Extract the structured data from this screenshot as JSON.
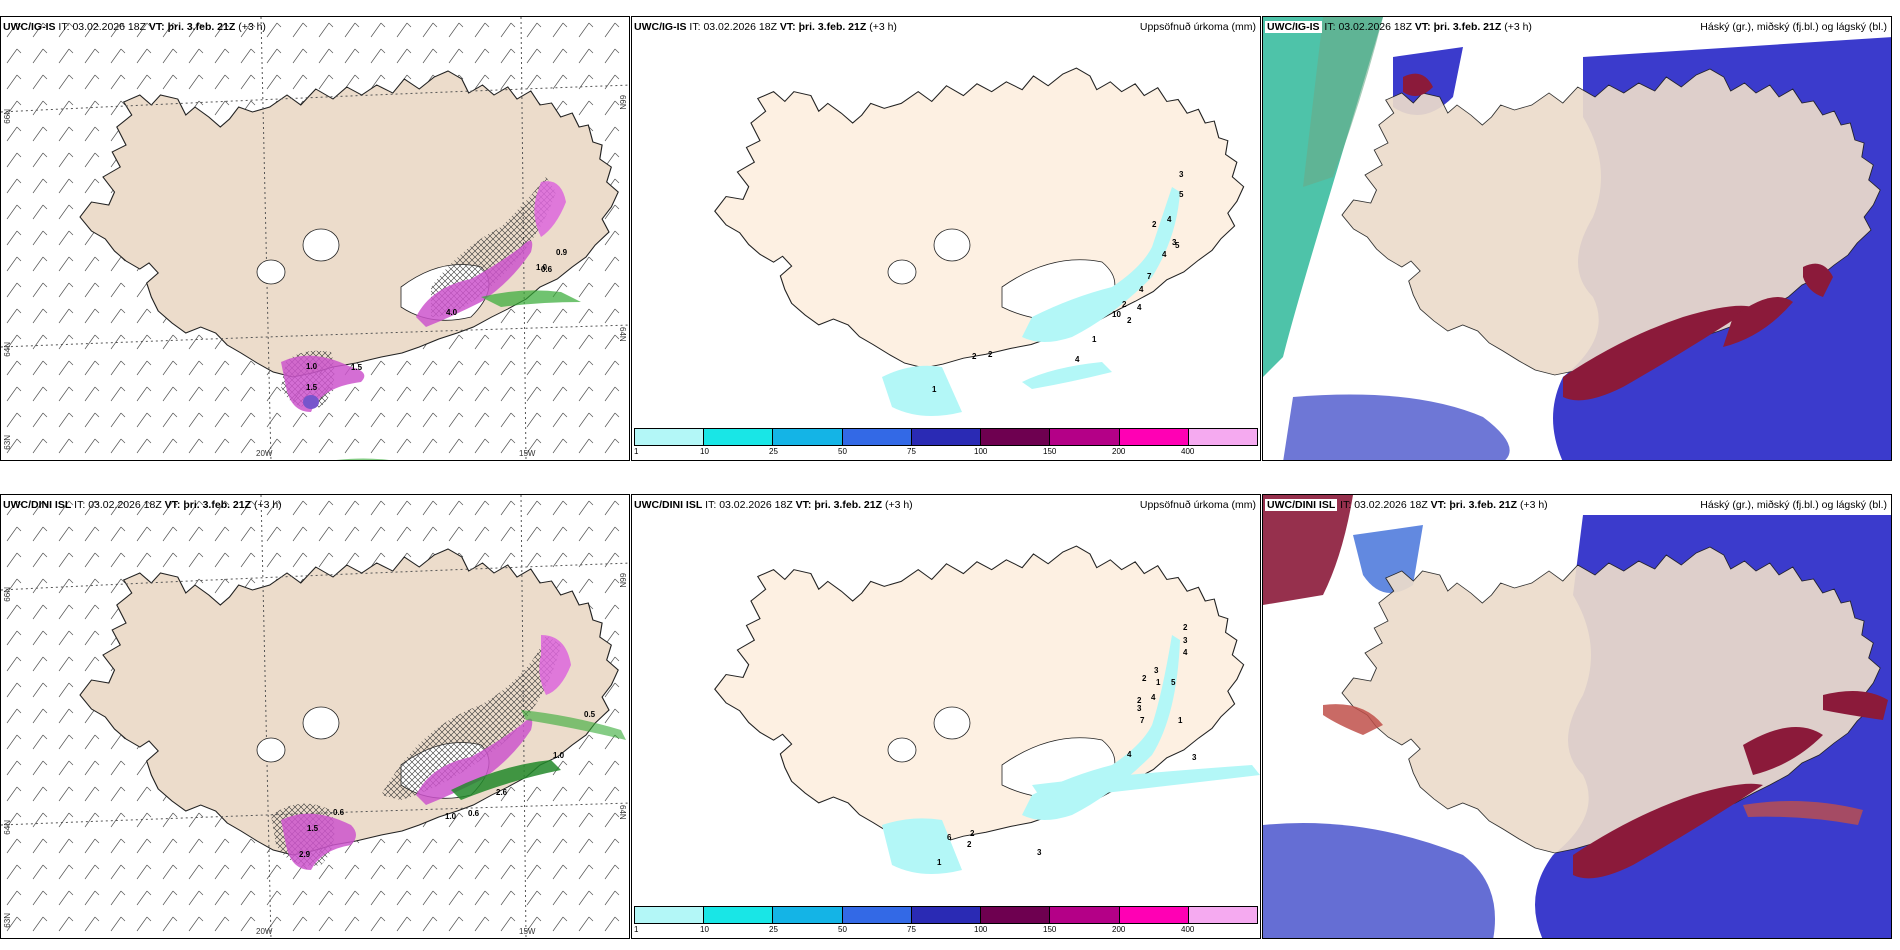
{
  "rows": [
    {
      "model": "UWC/IG-IS",
      "it_label": "IT:",
      "it_value": "03.02.2026 18Z",
      "vt_label": "VT:",
      "vt_value": "þri. 3.feb. 21Z",
      "lead": "(+3 h)"
    },
    {
      "model": "UWC/DINI ISL",
      "it_label": "IT:",
      "it_value": "03.02.2026 18Z",
      "vt_label": "VT:",
      "vt_value": "þri. 3.feb. 21Z",
      "lead": "(+3 h)"
    }
  ],
  "precip_title": "Uppsöfnuð úrkoma (mm)",
  "cloud_title": "Háský (gr.), miðský (fj.bl.) og lágský (bl.)",
  "colorbar": {
    "colors": [
      "#b3f7f7",
      "#19e6e6",
      "#14b4e6",
      "#3369e6",
      "#2a2ab4",
      "#6e0050",
      "#b40087",
      "#ff00b4",
      "#f5aaf0"
    ],
    "labels": [
      "1",
      "10",
      "25",
      "50",
      "75",
      "100",
      "150",
      "200",
      "400"
    ]
  },
  "coords": {
    "lat66_left": "66N",
    "lat66_right": "66N",
    "lat64_left": "64N",
    "lat64_right": "64N",
    "lat63": "63N",
    "lon20": "20W",
    "lon15": "15W"
  },
  "wind_labels_top": [
    "1.0",
    "0.9",
    "0.6",
    "1.5",
    "4.0",
    "1.0",
    "1.5"
  ],
  "wind_labels_bottom": [
    "0.5",
    "1.0",
    "0.6",
    "1.0",
    "2.9",
    "2.6",
    "1.5",
    "0.6"
  ],
  "precip_numbers_top": [
    "3",
    "2",
    "4",
    "5",
    "3",
    "4",
    "5",
    "7",
    "4",
    "2",
    "1",
    "10",
    "2",
    "4",
    "4",
    "2",
    "2",
    "1"
  ],
  "precip_numbers_bottom": [
    "2",
    "3",
    "4",
    "2",
    "3",
    "1",
    "5",
    "2",
    "4",
    "3",
    "7",
    "4",
    "1",
    "3",
    "6",
    "2",
    "2",
    "1",
    "3"
  ]
}
